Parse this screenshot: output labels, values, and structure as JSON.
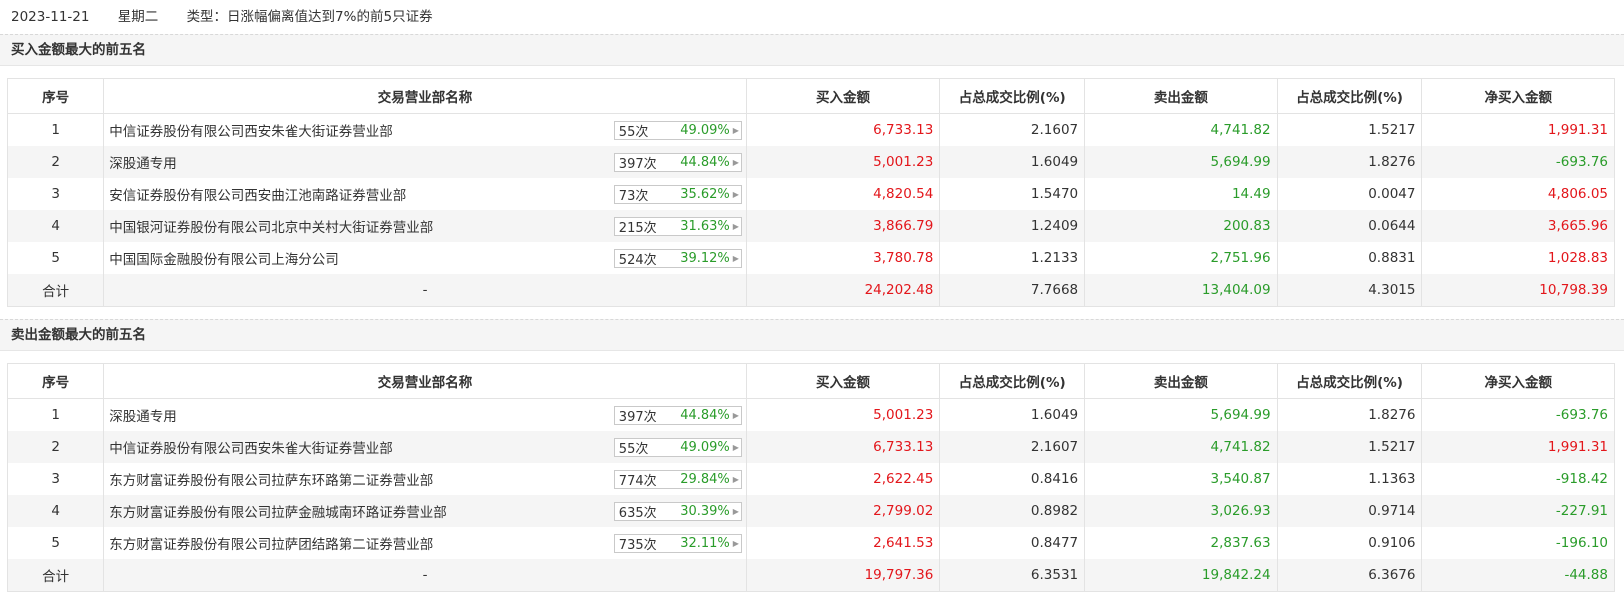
{
  "header": {
    "date": "2023-11-21",
    "weekday": "星期二",
    "type_label": "类型：日涨幅偏离值达到7%的前5只证券"
  },
  "columns": [
    "序号",
    "交易营业部名称",
    "买入金额",
    "占总成交比例(%)",
    "卖出金额",
    "占总成交比例(%)",
    "净买入金额"
  ],
  "buy_section": {
    "title": "买入金额最大的前五名",
    "rows": [
      {
        "no": "1",
        "name": "中信证券股份有限公司西安朱雀大街证券营业部",
        "count": "55次",
        "rate": "49.09%",
        "buy": "6,733.13",
        "buy_pct": "2.1607",
        "sell": "4,741.82",
        "sell_pct": "1.5217",
        "net": "1,991.31",
        "net_sign": "pos"
      },
      {
        "no": "2",
        "name": "深股通专用",
        "count": "397次",
        "rate": "44.84%",
        "buy": "5,001.23",
        "buy_pct": "1.6049",
        "sell": "5,694.99",
        "sell_pct": "1.8276",
        "net": "-693.76",
        "net_sign": "neg"
      },
      {
        "no": "3",
        "name": "安信证券股份有限公司西安曲江池南路证券营业部",
        "count": "73次",
        "rate": "35.62%",
        "buy": "4,820.54",
        "buy_pct": "1.5470",
        "sell": "14.49",
        "sell_pct": "0.0047",
        "net": "4,806.05",
        "net_sign": "pos"
      },
      {
        "no": "4",
        "name": "中国银河证券股份有限公司北京中关村大街证券营业部",
        "count": "215次",
        "rate": "31.63%",
        "buy": "3,866.79",
        "buy_pct": "1.2409",
        "sell": "200.83",
        "sell_pct": "0.0644",
        "net": "3,665.96",
        "net_sign": "pos"
      },
      {
        "no": "5",
        "name": "中国国际金融股份有限公司上海分公司",
        "count": "524次",
        "rate": "39.12%",
        "buy": "3,780.78",
        "buy_pct": "1.2133",
        "sell": "2,751.96",
        "sell_pct": "0.8831",
        "net": "1,028.83",
        "net_sign": "pos"
      }
    ],
    "total": {
      "label": "合计",
      "name": "-",
      "buy": "24,202.48",
      "buy_pct": "7.7668",
      "sell": "13,404.09",
      "sell_pct": "4.3015",
      "net": "10,798.39",
      "net_sign": "pos"
    }
  },
  "sell_section": {
    "title": "卖出金额最大的前五名",
    "rows": [
      {
        "no": "1",
        "name": "深股通专用",
        "count": "397次",
        "rate": "44.84%",
        "buy": "5,001.23",
        "buy_pct": "1.6049",
        "sell": "5,694.99",
        "sell_pct": "1.8276",
        "net": "-693.76",
        "net_sign": "neg"
      },
      {
        "no": "2",
        "name": "中信证券股份有限公司西安朱雀大街证券营业部",
        "count": "55次",
        "rate": "49.09%",
        "buy": "6,733.13",
        "buy_pct": "2.1607",
        "sell": "4,741.82",
        "sell_pct": "1.5217",
        "net": "1,991.31",
        "net_sign": "pos"
      },
      {
        "no": "3",
        "name": "东方财富证券股份有限公司拉萨东环路第二证券营业部",
        "count": "774次",
        "rate": "29.84%",
        "buy": "2,622.45",
        "buy_pct": "0.8416",
        "sell": "3,540.87",
        "sell_pct": "1.1363",
        "net": "-918.42",
        "net_sign": "neg"
      },
      {
        "no": "4",
        "name": "东方财富证券股份有限公司拉萨金融城南环路证券营业部",
        "count": "635次",
        "rate": "30.39%",
        "buy": "2,799.02",
        "buy_pct": "0.8982",
        "sell": "3,026.93",
        "sell_pct": "0.9714",
        "net": "-227.91",
        "net_sign": "neg"
      },
      {
        "no": "5",
        "name": "东方财富证券股份有限公司拉萨团结路第二证券营业部",
        "count": "735次",
        "rate": "32.11%",
        "buy": "2,641.53",
        "buy_pct": "0.8477",
        "sell": "2,837.63",
        "sell_pct": "0.9106",
        "net": "-196.10",
        "net_sign": "neg"
      }
    ],
    "total": {
      "label": "合计",
      "name": "-",
      "buy": "19,797.36",
      "buy_pct": "6.3531",
      "sell": "19,842.24",
      "sell_pct": "6.3676",
      "net": "-44.88",
      "net_sign": "neg"
    }
  },
  "colors": {
    "positive": "#e3161b",
    "negative": "#2a9c2a",
    "zebra": "#f5f5f5"
  }
}
